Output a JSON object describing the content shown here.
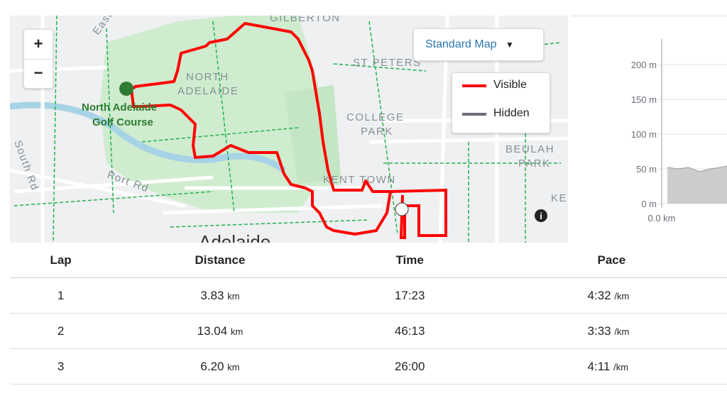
{
  "map": {
    "labels": {
      "gilberton": "GILBERTON",
      "north_adelaide_1": "NORTH",
      "north_adelaide_2": "ADELAIDE",
      "golf_1": "North Adelaide",
      "golf_2": "Golf Course",
      "st_peters": "ST PETERS",
      "college_1": "COLLEGE",
      "college_2": "PARK",
      "beulah_1": "BEULAH",
      "beulah_2": "PARK",
      "kent_town": "KENT TOWN",
      "ke": "KE",
      "port_rd": "Port Rd",
      "south_rd": "South Rd",
      "east": "East",
      "adelaide": "Adelaide"
    },
    "controls": {
      "zoom_in": "+",
      "zoom_out": "−",
      "map_type": "Standard Map"
    },
    "legend": {
      "visible": "Visible",
      "hidden": "Hidden"
    }
  },
  "elevation": {
    "yticks": [
      "200 m",
      "150 m",
      "100 m",
      "50 m",
      "0 m"
    ],
    "xtick": "0.0 km"
  },
  "table": {
    "headers": [
      "Lap",
      "Distance",
      "Time",
      "Pace"
    ],
    "rows": [
      {
        "lap": "1",
        "distance": "3.83",
        "distance_unit": "km",
        "time": "17:23",
        "pace": "4:32",
        "pace_unit": "/km"
      },
      {
        "lap": "2",
        "distance": "13.04",
        "distance_unit": "km",
        "time": "46:13",
        "pace": "3:33",
        "pace_unit": "/km"
      },
      {
        "lap": "3",
        "distance": "6.20",
        "distance_unit": "km",
        "time": "26:00",
        "pace": "4:11",
        "pace_unit": "/km"
      }
    ]
  }
}
